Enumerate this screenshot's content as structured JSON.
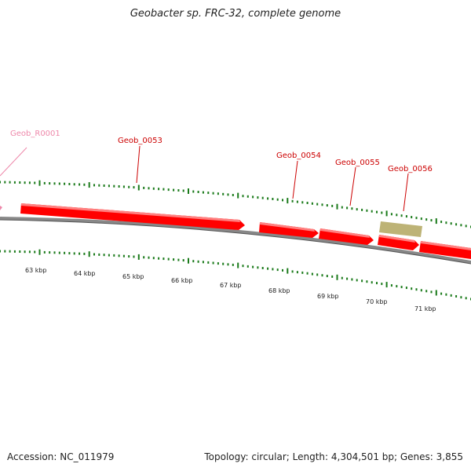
{
  "title": "Geobacter sp. FRC-32, complete genome",
  "footer": {
    "accession": "Accession: NC_011979",
    "summary": "Topology: circular; Length: 4,304,501 bp; Genes: 3,855"
  },
  "colors": {
    "gene": "#ff0000",
    "gene_highlight": "#ff8080",
    "rna": "#ee88aa",
    "other_feature": "#bdb376",
    "backbone": "#888888",
    "tick": "#1a7a1a"
  },
  "scale_labels": [
    "63 kbp",
    "64 kbp",
    "65 kbp",
    "66 kbp",
    "67 kbp",
    "68 kbp",
    "69 kbp",
    "70 kbp",
    "71 kbp"
  ],
  "features": [
    {
      "label": "Geob_R0001",
      "kind": "rna"
    },
    {
      "label": "Geob_0053",
      "kind": "gene"
    },
    {
      "label": "Geob_0054",
      "kind": "gene"
    },
    {
      "label": "Geob_0055",
      "kind": "gene"
    },
    {
      "label": "Geob_0056",
      "kind": "gene"
    }
  ]
}
